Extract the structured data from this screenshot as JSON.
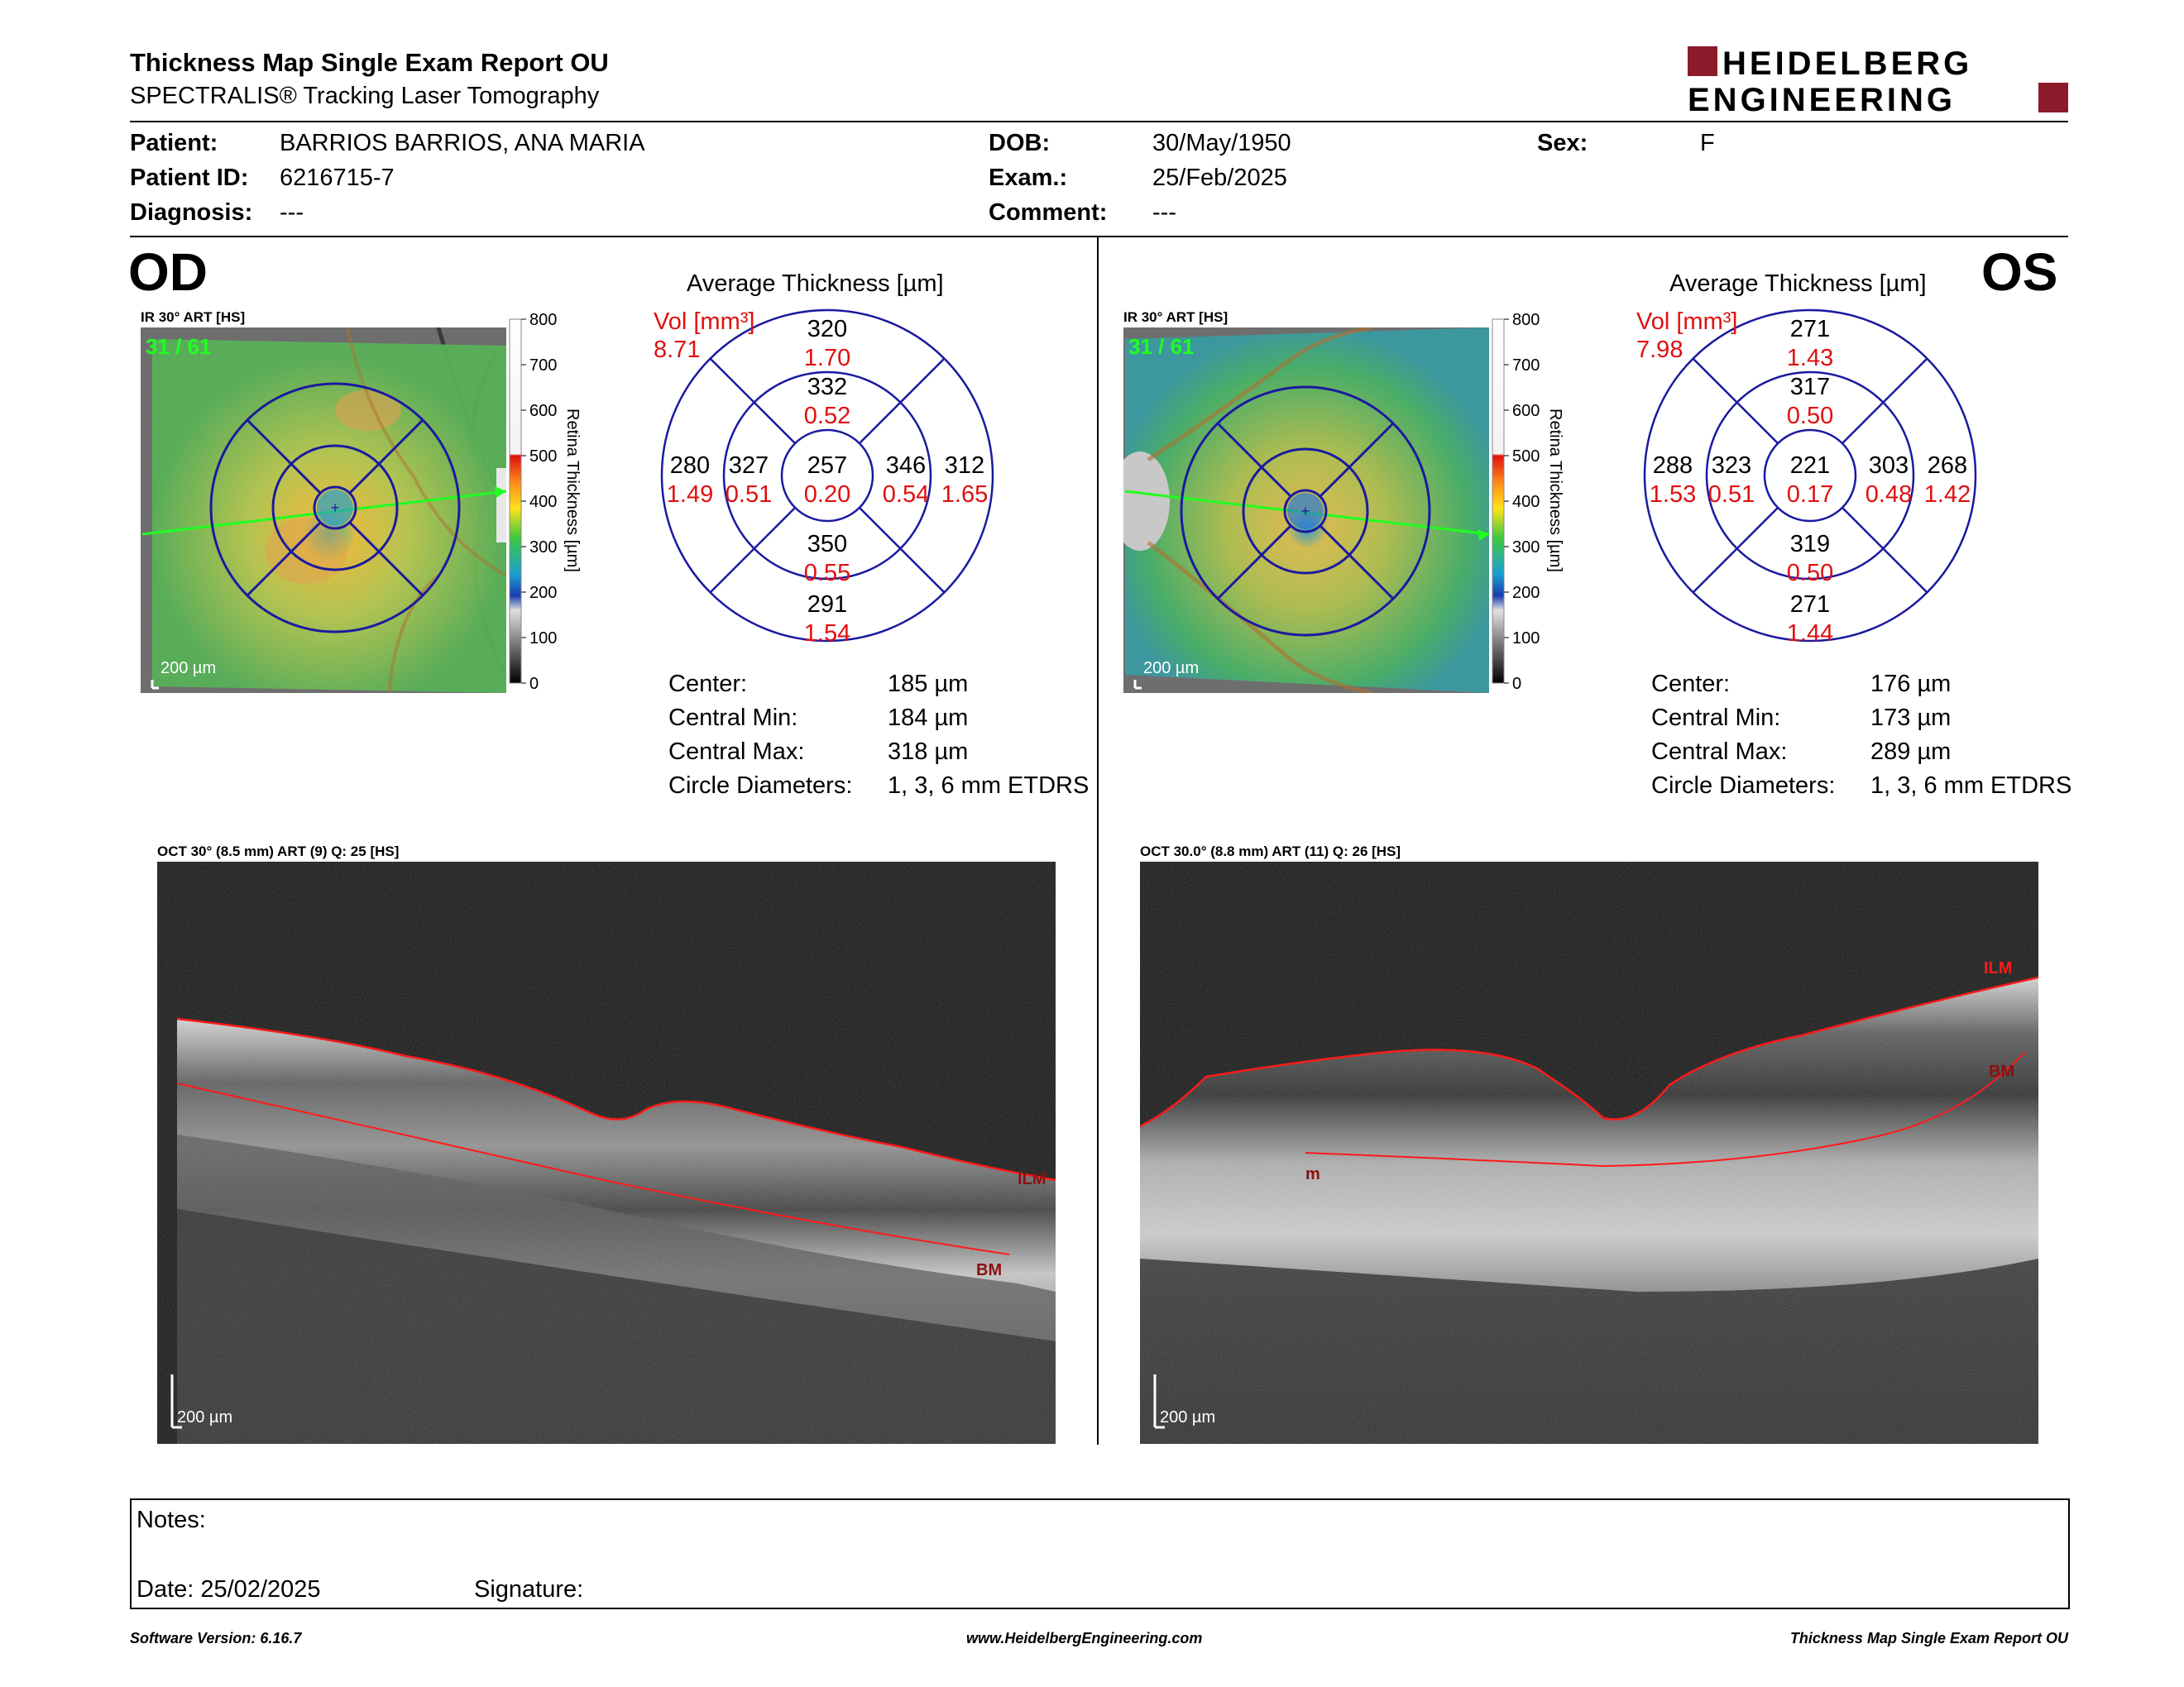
{
  "report": {
    "title": "Thickness Map Single Exam Report OU",
    "subtitle": "SPECTRALIS® Tracking Laser Tomography",
    "logo_line1": "HEIDELBERG",
    "logo_line2": "ENGINEERING"
  },
  "patient": {
    "patient_label": "Patient:",
    "patient_value": "BARRIOS BARRIOS, ANA MARIA",
    "id_label": "Patient ID:",
    "id_value": "6216715-7",
    "diagnosis_label": "Diagnosis:",
    "diagnosis_value": "---",
    "dob_label": "DOB:",
    "dob_value": "30/May/1950",
    "exam_label": "Exam.:",
    "exam_value": "25/Feb/2025",
    "comment_label": "Comment:",
    "comment_value": "---",
    "sex_label": "Sex:",
    "sex_value": "F"
  },
  "colorbar": {
    "ticks": [
      "800",
      "700",
      "600",
      "500",
      "400",
      "300",
      "200",
      "100",
      "0"
    ],
    "label": "Retina  Thickness [µm]"
  },
  "od": {
    "eye": "OD",
    "ir_label": "IR 30° ART [HS]",
    "frame_counter": "31 / 61",
    "scale": "200 µm",
    "avg_title": "Average Thickness [µm]",
    "vol_label": "Vol [mm³]",
    "total_vol": "8.71",
    "grid": {
      "center": {
        "t": "257",
        "v": "0.20"
      },
      "inner_sup": {
        "t": "332",
        "v": "0.52"
      },
      "inner_inf": {
        "t": "350",
        "v": "0.55"
      },
      "inner_left": {
        "t": "327",
        "v": "0.51"
      },
      "inner_right": {
        "t": "346",
        "v": "0.54"
      },
      "outer_sup": {
        "t": "320",
        "v": "1.70"
      },
      "outer_inf": {
        "t": "291",
        "v": "1.54"
      },
      "outer_left": {
        "t": "280",
        "v": "1.49"
      },
      "outer_right": {
        "t": "312",
        "v": "1.65"
      }
    },
    "stats": {
      "center_label": "Center:",
      "center_value": "185 µm",
      "min_label": "Central Min:",
      "min_value": "184 µm",
      "max_label": "Central Max:",
      "max_value": "318 µm",
      "circle_label": "Circle Diameters:",
      "circle_value": "1, 3, 6 mm ETDRS"
    },
    "oct_label": "OCT 30° (8.5 mm) ART (9) Q: 25 [HS]",
    "oct_scale": "200 µm",
    "ilm": "ILM",
    "bm": "BM"
  },
  "os": {
    "eye": "OS",
    "ir_label": "IR 30° ART [HS]",
    "frame_counter": "31 / 61",
    "scale": "200 µm",
    "avg_title": "Average Thickness [µm]",
    "vol_label": "Vol [mm³]",
    "total_vol": "7.98",
    "grid": {
      "center": {
        "t": "221",
        "v": "0.17"
      },
      "inner_sup": {
        "t": "317",
        "v": "0.50"
      },
      "inner_inf": {
        "t": "319",
        "v": "0.50"
      },
      "inner_left": {
        "t": "323",
        "v": "0.51"
      },
      "inner_right": {
        "t": "303",
        "v": "0.48"
      },
      "outer_sup": {
        "t": "271",
        "v": "1.43"
      },
      "outer_inf": {
        "t": "271",
        "v": "1.44"
      },
      "outer_left": {
        "t": "288",
        "v": "1.53"
      },
      "outer_right": {
        "t": "268",
        "v": "1.42"
      }
    },
    "stats": {
      "center_label": "Center:",
      "center_value": "176 µm",
      "min_label": "Central Min:",
      "min_value": "173 µm",
      "max_label": "Central Max:",
      "max_value": "289 µm",
      "circle_label": "Circle Diameters:",
      "circle_value": "1, 3, 6 mm ETDRS"
    },
    "oct_label": "OCT 30.0° (8.8 mm) ART (11) Q: 26 [HS]",
    "oct_scale": "200 µm",
    "ilm": "ILM",
    "bm": "BM",
    "marker": "m"
  },
  "notes": {
    "notes_label": "Notes:",
    "date_label": "Date: 25/02/2025",
    "signature_label": "Signature:"
  },
  "footer": {
    "software": "Software Version: 6.16.7",
    "website": "www.HeidelbergEngineering.com",
    "report_name": "Thickness Map Single Exam Report OU"
  }
}
